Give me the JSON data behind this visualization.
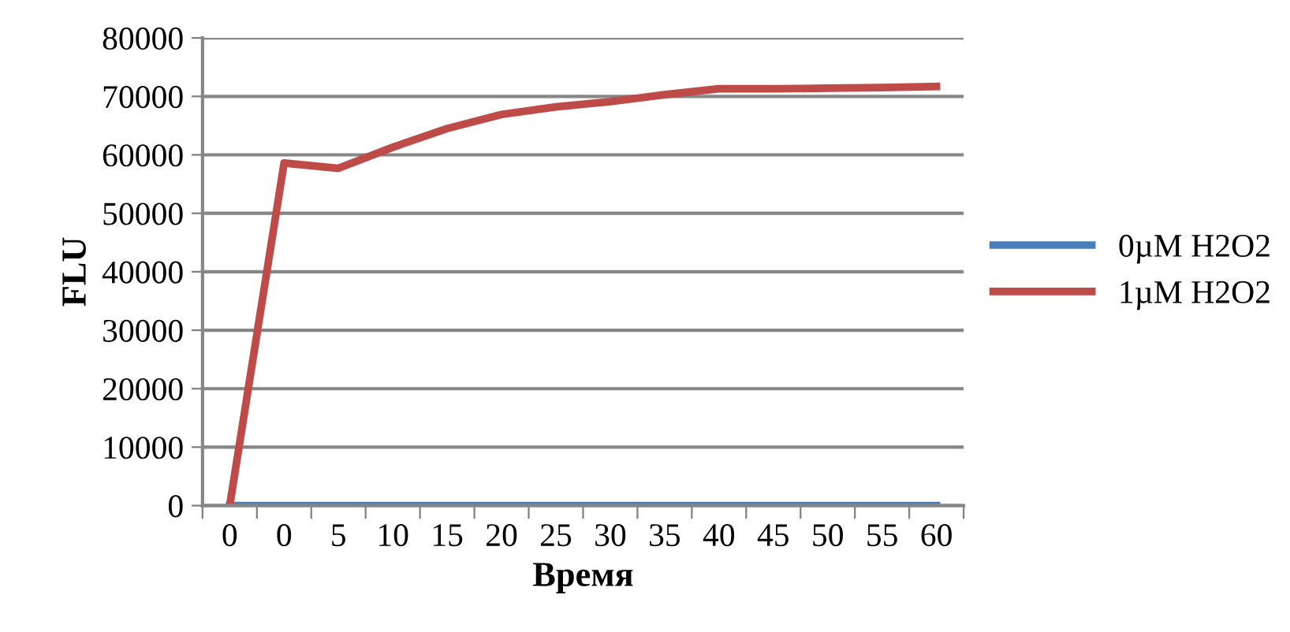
{
  "chart_data": {
    "type": "line",
    "xlabel": "Время",
    "ylabel": "FLU",
    "categories": [
      "0",
      "0",
      "5",
      "10",
      "15",
      "20",
      "25",
      "30",
      "35",
      "40",
      "45",
      "50",
      "55",
      "60"
    ],
    "series": [
      {
        "name": "0µM H2O2",
        "color": "#4a7ebb",
        "values": [
          0,
          0,
          0,
          0,
          0,
          0,
          0,
          0,
          0,
          0,
          0,
          0,
          0,
          0
        ]
      },
      {
        "name": "1µM H2O2",
        "color": "#be4b48",
        "values": [
          0,
          58600,
          57700,
          61300,
          64500,
          66900,
          68200,
          69100,
          70300,
          71300,
          71300,
          71400,
          71500,
          71700
        ]
      }
    ],
    "ylim": [
      0,
      80000
    ],
    "yticks": [
      0,
      10000,
      20000,
      30000,
      40000,
      50000,
      60000,
      70000,
      80000
    ],
    "grid": "y",
    "legend": "right",
    "marker": "none",
    "line_style": "solid"
  }
}
